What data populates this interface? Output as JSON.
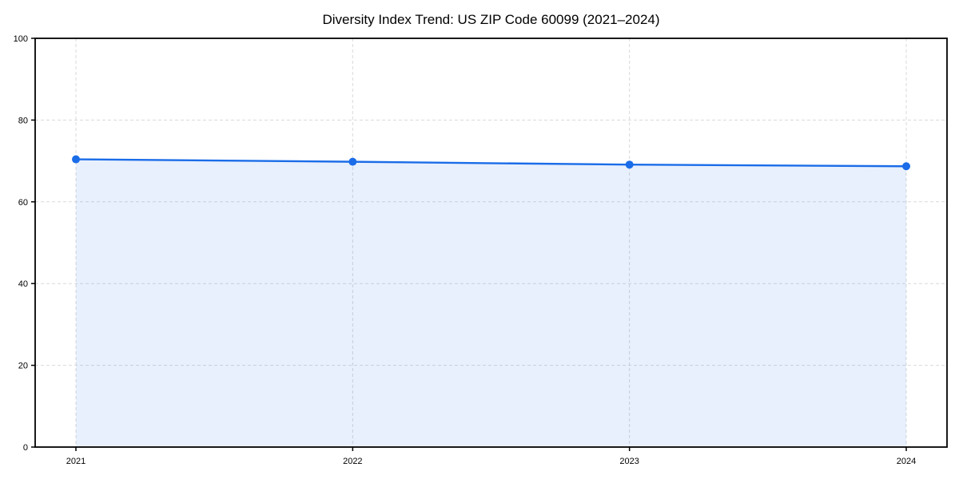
{
  "chart_data": {
    "type": "line",
    "title": "Diversity Index Trend: US ZIP Code 60099 (2021–2024)",
    "x": [
      2021,
      2022,
      2023,
      2024
    ],
    "xtick_labels": [
      "2021",
      "2022",
      "2023",
      "2024"
    ],
    "values": [
      70.4,
      69.8,
      69.1,
      68.7
    ],
    "xlabel": "",
    "ylabel": "",
    "ylim": [
      0,
      100
    ],
    "yticks": [
      0,
      20,
      40,
      60,
      80,
      100
    ],
    "grid": "dashed-both-axes",
    "legend_position": "none",
    "area_fill_to_zero": true,
    "marker": "circle",
    "colors": {
      "line": "#1a6ce8",
      "marker": "#1a6ce8",
      "area_fill": "rgba(26,108,232,0.10)",
      "gridline": "#d9d9d9",
      "spine": "#000000",
      "text": "#000000",
      "background": "#ffffff"
    }
  }
}
